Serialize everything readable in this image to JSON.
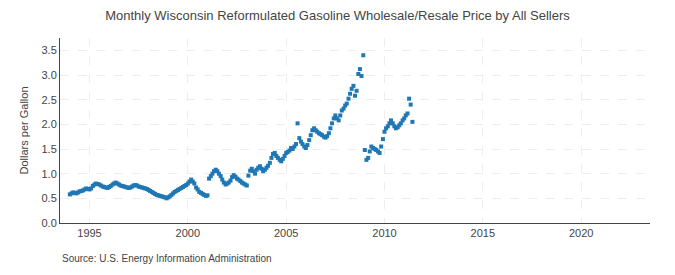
{
  "chart_data": {
    "type": "scatter",
    "title": "Monthly Wisconsin Reformulated Gasoline Wholesale/Resale Price by All Sellers",
    "ylabel": "Dollars per Gallon",
    "annotations": [
      "Source: U.S. Energy Information Administration"
    ],
    "marker": "square",
    "grid": true,
    "xlim": [
      1993.5,
      2023.5
    ],
    "ylim": [
      0.0,
      3.75
    ],
    "xticks": [
      1995,
      2000,
      2005,
      2010,
      2015,
      2020
    ],
    "yticks": [
      {
        "value": 0.0,
        "label": "0.0"
      },
      0.5,
      {
        "value": 1.0,
        "label": "1.0"
      },
      1.5,
      {
        "value": 2.0,
        "label": "2.0"
      },
      2.5,
      {
        "value": 3.0,
        "label": "3.0"
      },
      3.5
    ],
    "x": [
      1994.0,
      1994.08,
      1994.17,
      1994.25,
      1994.33,
      1994.42,
      1994.5,
      1994.58,
      1994.67,
      1994.75,
      1994.83,
      1994.92,
      1995.0,
      1995.08,
      1995.17,
      1995.25,
      1995.33,
      1995.42,
      1995.5,
      1995.58,
      1995.67,
      1995.75,
      1995.83,
      1995.92,
      1996.0,
      1996.08,
      1996.17,
      1996.25,
      1996.33,
      1996.42,
      1996.5,
      1996.58,
      1996.67,
      1996.75,
      1996.83,
      1996.92,
      1997.0,
      1997.08,
      1997.17,
      1997.25,
      1997.33,
      1997.42,
      1997.5,
      1997.58,
      1997.67,
      1997.75,
      1997.83,
      1997.92,
      1998.0,
      1998.08,
      1998.17,
      1998.25,
      1998.33,
      1998.42,
      1998.5,
      1998.58,
      1998.67,
      1998.75,
      1998.83,
      1998.92,
      1999.0,
      1999.08,
      1999.17,
      1999.25,
      1999.33,
      1999.42,
      1999.5,
      1999.58,
      1999.67,
      1999.75,
      1999.83,
      1999.92,
      2000.0,
      2000.08,
      2000.17,
      2000.25,
      2000.33,
      2000.42,
      2000.5,
      2000.58,
      2000.67,
      2000.75,
      2000.83,
      2000.92,
      2001.0,
      2001.08,
      2001.17,
      2001.25,
      2001.33,
      2001.42,
      2001.5,
      2001.58,
      2001.67,
      2001.75,
      2001.83,
      2001.92,
      2002.0,
      2002.08,
      2002.17,
      2002.25,
      2002.33,
      2002.42,
      2002.5,
      2002.58,
      2002.67,
      2002.75,
      2002.83,
      2002.92,
      2003.0,
      2003.08,
      2003.17,
      2003.25,
      2003.33,
      2003.42,
      2003.5,
      2003.58,
      2003.67,
      2003.75,
      2003.83,
      2003.92,
      2004.0,
      2004.08,
      2004.17,
      2004.25,
      2004.33,
      2004.42,
      2004.5,
      2004.58,
      2004.67,
      2004.75,
      2004.83,
      2004.92,
      2005.0,
      2005.08,
      2005.17,
      2005.25,
      2005.33,
      2005.42,
      2005.5,
      2005.58,
      2005.67,
      2005.75,
      2005.83,
      2005.92,
      2006.0,
      2006.08,
      2006.17,
      2006.25,
      2006.33,
      2006.42,
      2006.5,
      2006.58,
      2006.67,
      2006.75,
      2006.83,
      2006.92,
      2007.0,
      2007.08,
      2007.17,
      2007.25,
      2007.33,
      2007.42,
      2007.5,
      2007.58,
      2007.67,
      2007.75,
      2007.83,
      2007.92,
      2008.0,
      2008.08,
      2008.17,
      2008.25,
      2008.33,
      2008.42,
      2008.5,
      2008.58,
      2008.67,
      2008.75,
      2008.83,
      2008.92,
      2009.0,
      2009.08,
      2009.17,
      2009.25,
      2009.33,
      2009.42,
      2009.5,
      2009.58,
      2009.67,
      2009.75,
      2009.83,
      2009.92,
      2010.0,
      2010.08,
      2010.17,
      2010.25,
      2010.33,
      2010.42,
      2010.5,
      2010.58,
      2010.67,
      2010.75,
      2010.83,
      2010.92,
      2011.0,
      2011.08,
      2011.17,
      2011.25,
      2011.33,
      2011.42
    ],
    "values": [
      0.58,
      0.6,
      0.62,
      0.61,
      0.6,
      0.62,
      0.64,
      0.65,
      0.66,
      0.68,
      0.7,
      0.69,
      0.68,
      0.7,
      0.75,
      0.78,
      0.8,
      0.79,
      0.78,
      0.76,
      0.74,
      0.73,
      0.72,
      0.71,
      0.73,
      0.75,
      0.78,
      0.8,
      0.82,
      0.8,
      0.78,
      0.76,
      0.75,
      0.74,
      0.73,
      0.72,
      0.71,
      0.72,
      0.74,
      0.76,
      0.77,
      0.76,
      0.74,
      0.73,
      0.72,
      0.71,
      0.7,
      0.69,
      0.67,
      0.65,
      0.63,
      0.61,
      0.59,
      0.57,
      0.56,
      0.55,
      0.54,
      0.53,
      0.52,
      0.5,
      0.52,
      0.54,
      0.57,
      0.6,
      0.63,
      0.65,
      0.67,
      0.69,
      0.71,
      0.73,
      0.75,
      0.77,
      0.8,
      0.84,
      0.88,
      0.84,
      0.8,
      0.72,
      0.68,
      0.63,
      0.61,
      0.59,
      0.57,
      0.55,
      0.56,
      0.9,
      0.95,
      1.0,
      1.05,
      1.08,
      1.05,
      1.0,
      0.95,
      0.88,
      0.82,
      0.78,
      0.8,
      0.82,
      0.86,
      0.93,
      0.97,
      0.94,
      0.9,
      0.88,
      0.85,
      0.82,
      0.8,
      0.78,
      0.76,
      0.96,
      1.06,
      1.1,
      1.05,
      1.0,
      1.08,
      1.12,
      1.15,
      1.1,
      1.05,
      1.08,
      1.12,
      1.16,
      1.22,
      1.32,
      1.4,
      1.42,
      1.36,
      1.32,
      1.28,
      1.25,
      1.3,
      1.36,
      1.42,
      1.44,
      1.47,
      1.52,
      1.5,
      1.55,
      1.6,
      2.02,
      1.72,
      1.65,
      1.6,
      1.55,
      1.52,
      1.58,
      1.68,
      1.78,
      1.88,
      1.92,
      1.88,
      1.85,
      1.82,
      1.8,
      1.78,
      1.75,
      1.73,
      1.76,
      1.82,
      1.92,
      2.02,
      2.12,
      2.18,
      2.12,
      2.08,
      2.18,
      2.28,
      2.32,
      2.38,
      2.42,
      2.52,
      2.62,
      2.72,
      2.78,
      2.58,
      2.68,
      3.02,
      3.12,
      2.98,
      3.4,
      1.48,
      1.28,
      1.32,
      1.45,
      1.55,
      1.52,
      1.5,
      1.48,
      1.45,
      1.42,
      1.55,
      1.7,
      1.85,
      1.92,
      1.96,
      2.02,
      2.08,
      2.02,
      1.96,
      1.92,
      1.94,
      1.98,
      2.02,
      2.08,
      2.12,
      2.18,
      2.22,
      2.52,
      2.4,
      2.05
    ]
  }
}
